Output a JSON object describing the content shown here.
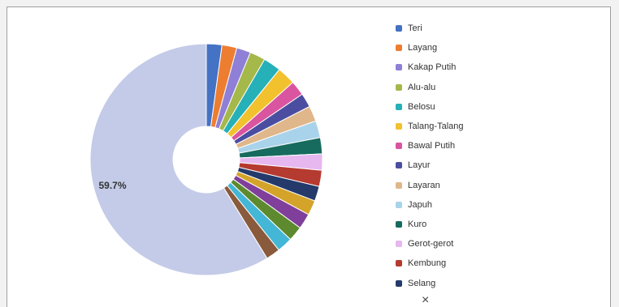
{
  "chart_data": {
    "type": "pie",
    "donut": true,
    "slices": [
      {
        "label": "Teri",
        "value": 2.2,
        "color": "#4472c4"
      },
      {
        "label": "Layang",
        "value": 2.1,
        "color": "#ed7d31"
      },
      {
        "label": "Kakap Putih",
        "value": 2.0,
        "color": "#8f7fd6"
      },
      {
        "label": "Alu-alu",
        "value": 2.2,
        "color": "#a5b84a"
      },
      {
        "label": "Belosu",
        "value": 2.5,
        "color": "#26b0b8"
      },
      {
        "label": "Talang-Talang",
        "value": 2.6,
        "color": "#f2c12e"
      },
      {
        "label": "Bawal Putih",
        "value": 2.1,
        "color": "#d9559f"
      },
      {
        "label": "Layur",
        "value": 2.0,
        "color": "#4b4ea0"
      },
      {
        "label": "Layaran",
        "value": 2.2,
        "color": "#e0b78a"
      },
      {
        "label": "Japuh",
        "value": 2.4,
        "color": "#a9d3ea"
      },
      {
        "label": "Kuro",
        "value": 2.3,
        "color": "#176b5e"
      },
      {
        "label": "Gerot-gerot",
        "value": 2.3,
        "color": "#e7b7ef"
      },
      {
        "label": "Kembung",
        "value": 2.3,
        "color": "#b53a2f"
      },
      {
        "label": "Selang",
        "value": 2.1,
        "color": "#243a6b"
      },
      {
        "label": "",
        "value": 2.1,
        "color": "#d4a32a"
      },
      {
        "label": "",
        "value": 2.2,
        "color": "#7f3f9a"
      },
      {
        "label": "",
        "value": 2.1,
        "color": "#5d8a2e"
      },
      {
        "label": "",
        "value": 2.2,
        "color": "#44b6d6"
      },
      {
        "label": "",
        "value": 2.0,
        "color": "#8a5a3c"
      },
      {
        "label": "",
        "value": 59.7,
        "color": "#c3cbe8"
      }
    ],
    "data_labels": [
      {
        "slice_index": 19,
        "text": "59.7%"
      }
    ],
    "legend": {
      "placement": "right",
      "entries": [
        "Teri",
        "Layang",
        "Kakap Putih",
        "Alu-alu",
        "Belosu",
        "Talang-Talang",
        "Bawal Putih",
        "Layur",
        "Layaran",
        "Japuh",
        "Kuro",
        "Gerot-gerot",
        "Kembung",
        "Selang"
      ]
    }
  },
  "ui": {
    "close_glyph": "×"
  }
}
